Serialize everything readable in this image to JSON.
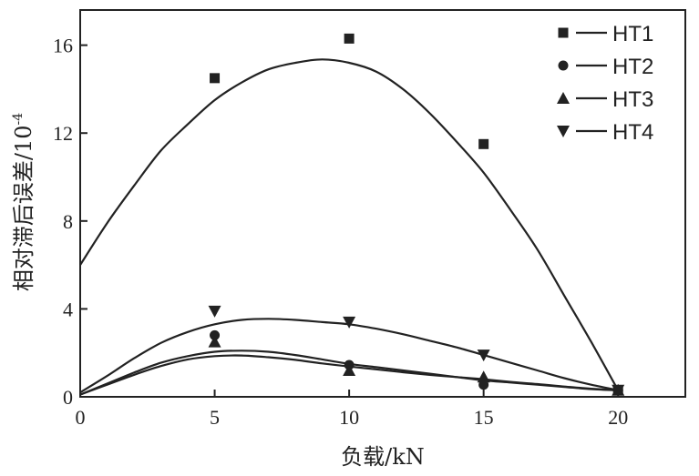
{
  "chart_data": {
    "type": "scatter",
    "title": "",
    "xlabel": "负载/kN",
    "ylabel": "相对滞后误差/10",
    "ylabel_exponent": "-4",
    "xlim": [
      0,
      22.5
    ],
    "ylim": [
      0,
      17.6
    ],
    "xticks": [
      0,
      5,
      10,
      15,
      20
    ],
    "yticks": [
      0,
      4,
      8,
      12,
      16
    ],
    "grid": false,
    "legend_position": "top-right",
    "series": [
      {
        "name": "HT1",
        "marker": "square",
        "points": [
          [
            0,
            6.0
          ],
          [
            5,
            14.5
          ],
          [
            10,
            16.3
          ],
          [
            15,
            11.5
          ],
          [
            20,
            0.3
          ]
        ],
        "fit": [
          [
            0,
            6.0
          ],
          [
            1,
            7.9
          ],
          [
            2,
            9.6
          ],
          [
            3,
            11.2
          ],
          [
            4,
            12.4
          ],
          [
            5,
            13.5
          ],
          [
            6,
            14.3
          ],
          [
            7,
            14.9
          ],
          [
            8,
            15.2
          ],
          [
            9,
            15.35
          ],
          [
            10,
            15.2
          ],
          [
            11,
            14.8
          ],
          [
            12,
            14.0
          ],
          [
            13,
            12.9
          ],
          [
            14,
            11.6
          ],
          [
            15,
            10.2
          ],
          [
            16,
            8.5
          ],
          [
            17,
            6.7
          ],
          [
            18,
            4.6
          ],
          [
            19,
            2.5
          ],
          [
            20,
            0.3
          ]
        ]
      },
      {
        "name": "HT2",
        "marker": "circle",
        "points": [
          [
            0,
            0.1
          ],
          [
            5,
            2.8
          ],
          [
            10,
            1.45
          ],
          [
            15,
            0.55
          ],
          [
            20,
            0.3
          ]
        ],
        "fit": [
          [
            0,
            0.1
          ],
          [
            1,
            0.6
          ],
          [
            2,
            1.1
          ],
          [
            3,
            1.55
          ],
          [
            4,
            1.85
          ],
          [
            5,
            2.05
          ],
          [
            6,
            2.1
          ],
          [
            7,
            2.05
          ],
          [
            8,
            1.9
          ],
          [
            9,
            1.7
          ],
          [
            10,
            1.5
          ],
          [
            11,
            1.35
          ],
          [
            12,
            1.2
          ],
          [
            13,
            1.05
          ],
          [
            14,
            0.9
          ],
          [
            15,
            0.75
          ],
          [
            16,
            0.65
          ],
          [
            17,
            0.55
          ],
          [
            18,
            0.45
          ],
          [
            19,
            0.35
          ],
          [
            20,
            0.3
          ]
        ]
      },
      {
        "name": "HT3",
        "marker": "triangle-up",
        "points": [
          [
            0,
            0.1
          ],
          [
            5,
            2.5
          ],
          [
            10,
            1.2
          ],
          [
            15,
            0.9
          ],
          [
            20,
            0.3
          ]
        ],
        "fit": [
          [
            0,
            0.1
          ],
          [
            1,
            0.55
          ],
          [
            2,
            1.0
          ],
          [
            3,
            1.4
          ],
          [
            4,
            1.7
          ],
          [
            5,
            1.85
          ],
          [
            6,
            1.88
          ],
          [
            7,
            1.8
          ],
          [
            8,
            1.68
          ],
          [
            9,
            1.52
          ],
          [
            10,
            1.38
          ],
          [
            11,
            1.25
          ],
          [
            12,
            1.12
          ],
          [
            13,
            1.0
          ],
          [
            14,
            0.9
          ],
          [
            15,
            0.8
          ],
          [
            16,
            0.68
          ],
          [
            17,
            0.58
          ],
          [
            18,
            0.47
          ],
          [
            19,
            0.37
          ],
          [
            20,
            0.3
          ]
        ]
      },
      {
        "name": "HT4",
        "marker": "triangle-down",
        "points": [
          [
            0,
            0.2
          ],
          [
            5,
            3.9
          ],
          [
            10,
            3.4
          ],
          [
            15,
            1.9
          ],
          [
            20,
            0.3
          ]
        ],
        "fit": [
          [
            0,
            0.2
          ],
          [
            1,
            0.95
          ],
          [
            2,
            1.75
          ],
          [
            3,
            2.45
          ],
          [
            4,
            2.95
          ],
          [
            5,
            3.3
          ],
          [
            6,
            3.5
          ],
          [
            7,
            3.55
          ],
          [
            8,
            3.5
          ],
          [
            9,
            3.4
          ],
          [
            10,
            3.3
          ],
          [
            11,
            3.1
          ],
          [
            12,
            2.85
          ],
          [
            13,
            2.55
          ],
          [
            14,
            2.25
          ],
          [
            15,
            1.9
          ],
          [
            16,
            1.55
          ],
          [
            17,
            1.2
          ],
          [
            18,
            0.85
          ],
          [
            19,
            0.55
          ],
          [
            20,
            0.3
          ]
        ]
      }
    ]
  }
}
